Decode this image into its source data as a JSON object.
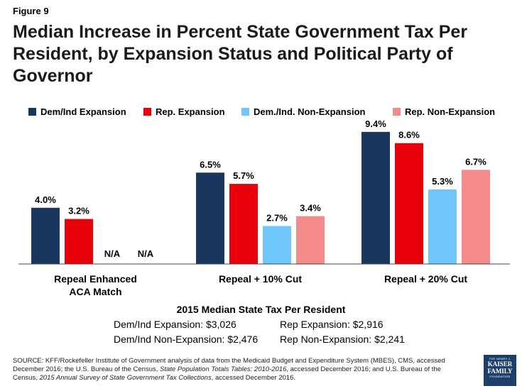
{
  "figure_label": "Figure 9",
  "title": "Median Increase in Percent State Government Tax Per Resident, by Expansion Status and Political Party of Governor",
  "legend": [
    {
      "label": "Dem/Ind Expansion",
      "color": "#1b365d"
    },
    {
      "label": "Rep. Expansion",
      "color": "#e8000b"
    },
    {
      "label": "Dem./Ind. Non-Expansion",
      "color": "#6ec6f9"
    },
    {
      "label": "Rep.  Non-Expansion",
      "color": "#f58a8a"
    }
  ],
  "chart_data": {
    "type": "bar",
    "categories": [
      "Repeal Enhanced ACA Match",
      "Repeal + 10% Cut",
      "Repeal + 20% Cut"
    ],
    "series": [
      {
        "name": "Dem/Ind Expansion",
        "values": [
          4.0,
          6.5,
          9.4
        ],
        "labels": [
          "4.0%",
          "6.5%",
          "9.4%"
        ],
        "color": "#1b365d"
      },
      {
        "name": "Rep. Expansion",
        "values": [
          3.2,
          5.7,
          8.6
        ],
        "labels": [
          "3.2%",
          "5.7%",
          "8.6%"
        ],
        "color": "#e8000b"
      },
      {
        "name": "Dem./Ind. Non-Expansion",
        "values": [
          null,
          2.7,
          5.3
        ],
        "labels": [
          "N/A",
          "2.7%",
          "5.3%"
        ],
        "color": "#6ec6f9"
      },
      {
        "name": "Rep.  Non-Expansion",
        "values": [
          null,
          3.4,
          6.7
        ],
        "labels": [
          "N/A",
          "3.4%",
          "6.7%"
        ],
        "color": "#f58a8a"
      }
    ],
    "ylim": [
      0,
      10
    ],
    "grid": false,
    "legend_position": "top"
  },
  "footer": {
    "title": "2015 Median State Tax Per Resident",
    "rows": [
      [
        "Dem/Ind Expansion: $3,026",
        "Rep Expansion: $2,916"
      ],
      [
        "Dem/Ind Non-Expansion: $2,476",
        "Rep Non-Expansion: $2,241"
      ]
    ]
  },
  "source": {
    "prefix": "SOURCE:  KFF/Rockefeller Institute of Government  analysis of data from the  Medicaid Budget and Expenditure System (MBES), CMS, accessed December 2016; the U.S. Bureau of the Census, ",
    "italic1": "State Population Totals Tables: 2010-2016",
    "middle": ", accessed December  2016; and U.S. Bureau of the Census, ",
    "italic2": "2015 Annual Survey of State Government Tax Collections",
    "suffix": ", accessed December  2016."
  },
  "logo": {
    "line1": "THE HENRY J.",
    "line2": "KAISER",
    "line3": "FAMILY",
    "line4": "FOUNDATION"
  }
}
